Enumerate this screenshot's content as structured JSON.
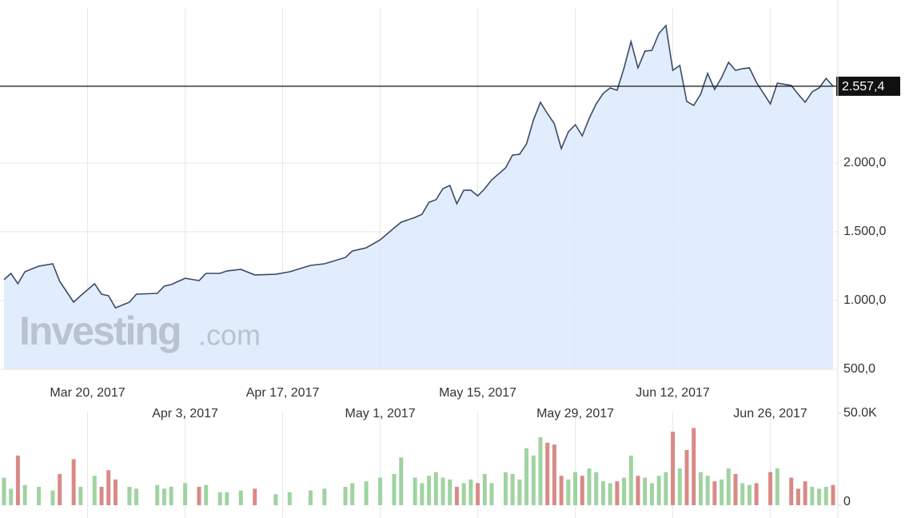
{
  "chart_data": {
    "type": "line",
    "watermark": [
      "Investing",
      ".com"
    ],
    "x": [
      "2017-03-08",
      "2017-03-09",
      "2017-03-10",
      "2017-03-11",
      "2017-03-13",
      "2017-03-15",
      "2017-03-16",
      "2017-03-18",
      "2017-03-19",
      "2017-03-21",
      "2017-03-22",
      "2017-03-23",
      "2017-03-24",
      "2017-03-26",
      "2017-03-27",
      "2017-03-30",
      "2017-03-31",
      "2017-04-01",
      "2017-04-03",
      "2017-04-05",
      "2017-04-06",
      "2017-04-08",
      "2017-04-09",
      "2017-04-11",
      "2017-04-13",
      "2017-04-16",
      "2017-04-18",
      "2017-04-21",
      "2017-04-23",
      "2017-04-26",
      "2017-04-27",
      "2017-04-29",
      "2017-05-01",
      "2017-05-03",
      "2017-05-04",
      "2017-05-06",
      "2017-05-07",
      "2017-05-08",
      "2017-05-09",
      "2017-05-10",
      "2017-05-11",
      "2017-05-12",
      "2017-05-13",
      "2017-05-14",
      "2017-05-15",
      "2017-05-16",
      "2017-05-17",
      "2017-05-19",
      "2017-05-20",
      "2017-05-21",
      "2017-05-22",
      "2017-05-23",
      "2017-05-24",
      "2017-05-25",
      "2017-05-26",
      "2017-05-27",
      "2017-05-28",
      "2017-05-29",
      "2017-05-30",
      "2017-05-31",
      "2017-06-01",
      "2017-06-02",
      "2017-06-03",
      "2017-06-04",
      "2017-06-05",
      "2017-06-06",
      "2017-06-07",
      "2017-06-08",
      "2017-06-09",
      "2017-06-10",
      "2017-06-11",
      "2017-06-12",
      "2017-06-13",
      "2017-06-14",
      "2017-06-15",
      "2017-06-16",
      "2017-06-17",
      "2017-06-18",
      "2017-06-19",
      "2017-06-20",
      "2017-06-21",
      "2017-06-22",
      "2017-06-23",
      "2017-06-24",
      "2017-06-26",
      "2017-06-27",
      "2017-06-29",
      "2017-06-30",
      "2017-07-01",
      "2017-07-02",
      "2017-07-03",
      "2017-07-04",
      "2017-07-05"
    ],
    "series": [
      {
        "color": "#3b4a66",
        "fill": "#dceafb",
        "values": [
          1151,
          1197,
          1122,
          1209,
          1250,
          1267,
          1139,
          988,
          1035,
          1122,
          1046,
          1035,
          947,
          988,
          1046,
          1052,
          1104,
          1116,
          1162,
          1145,
          1197,
          1197,
          1215,
          1226,
          1186,
          1191,
          1209,
          1255,
          1267,
          1313,
          1360,
          1383,
          1441,
          1528,
          1569,
          1604,
          1627,
          1714,
          1732,
          1813,
          1836,
          1703,
          1802,
          1802,
          1761,
          1813,
          1877,
          1964,
          2057,
          2063,
          2139,
          2313,
          2441,
          2359,
          2284,
          2104,
          2226,
          2278,
          2197,
          2324,
          2429,
          2505,
          2545,
          2528,
          2691,
          2882,
          2691,
          2813,
          2818,
          2940,
          2999,
          2673,
          2708,
          2447,
          2418,
          2499,
          2650,
          2534,
          2621,
          2731,
          2673,
          2685,
          2691,
          2586,
          2429,
          2580,
          2563,
          2499,
          2441,
          2517,
          2545,
          2615,
          2557.4
        ]
      }
    ],
    "price_line": {
      "value": 2557.4,
      "label": "2.557,4"
    },
    "xlim": [
      "2017-03-08",
      "2017-07-05"
    ],
    "xticks": [
      {
        "value": "2017-03-20",
        "label": "Mar 20, 2017"
      },
      {
        "value": "2017-04-03",
        "label": "Apr 3, 2017"
      },
      {
        "value": "2017-04-17",
        "label": "Apr 17, 2017"
      },
      {
        "value": "2017-05-01",
        "label": "May 1, 2017"
      },
      {
        "value": "2017-05-15",
        "label": "May 15, 2017"
      },
      {
        "value": "2017-05-29",
        "label": "May 29, 2017"
      },
      {
        "value": "2017-06-12",
        "label": "Jun 12, 2017"
      },
      {
        "value": "2017-06-26",
        "label": "Jun 26, 2017"
      }
    ],
    "ylim": [
      500,
      3126
    ],
    "yticks": [
      {
        "value": 500,
        "label": "500,0"
      },
      {
        "value": 1000,
        "label": "1.000,0"
      },
      {
        "value": 1500,
        "label": "1.500,0"
      },
      {
        "value": 2000,
        "label": "2.000,0"
      }
    ],
    "grid": true,
    "volume": {
      "type": "bar",
      "up_color": "#9fd3a0",
      "down_color": "#d88a86",
      "values": [
        15000,
        9000,
        27000,
        11000,
        10000,
        8000,
        17000,
        25000,
        10000,
        16000,
        10000,
        19000,
        14000,
        10000,
        9000,
        11000,
        9000,
        10000,
        12000,
        10000,
        11000,
        7000,
        7000,
        8000,
        9000,
        6000,
        7000,
        8000,
        9000,
        10000,
        12000,
        13000,
        15000,
        17000,
        26000,
        15000,
        12000,
        16000,
        18000,
        15000,
        14000,
        10000,
        12000,
        14000,
        12000,
        17000,
        12000,
        18000,
        17000,
        14000,
        31000,
        27000,
        37000,
        34000,
        33000,
        16000,
        14000,
        18000,
        16000,
        20000,
        18000,
        13000,
        12000,
        13000,
        15000,
        27000,
        16000,
        15000,
        12000,
        16000,
        18000,
        40000,
        20000,
        30000,
        42000,
        18000,
        16000,
        13000,
        14000,
        20000,
        17000,
        12000,
        11000,
        12000,
        18000,
        20000,
        15000,
        9000,
        13000,
        10000,
        9000,
        10000,
        11000
      ],
      "ylim": [
        0,
        50000
      ],
      "yticks": [
        0,
        {
          "value": 50000,
          "label": "50.0K"
        }
      ]
    }
  }
}
